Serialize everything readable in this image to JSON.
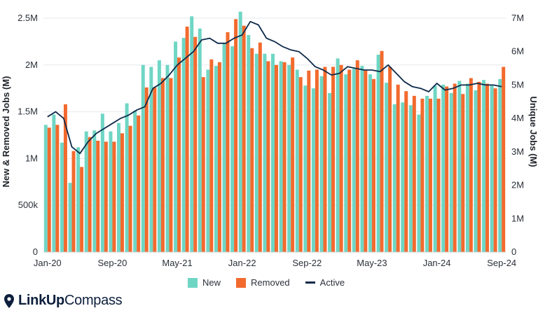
{
  "legend": {
    "new_label": "New",
    "removed_label": "Removed",
    "active_label": "Active"
  },
  "brand": {
    "name_bold": "LinkUp",
    "name_light": "Compass"
  },
  "chart_data": {
    "type": "bar",
    "title": "",
    "ylabel_left": "New & Removed Jobs (M)",
    "ylabel_right": "Unique Jobs (M)",
    "ylim_left": [
      0,
      2500000
    ],
    "ylim_right": [
      0,
      7000000
    ],
    "yticks_left": [
      "0",
      "500k",
      "1M",
      "1.5M",
      "2M",
      "2.5M"
    ],
    "yticks_right": [
      "0",
      "1M",
      "2M",
      "3M",
      "4M",
      "5M",
      "6M",
      "7M"
    ],
    "xticks": [
      "Jan-20",
      "Sep-20",
      "May-21",
      "Jan-22",
      "Sep-22",
      "May-23",
      "Jan-24",
      "Sep-24"
    ],
    "legend_position": "bottom",
    "colors": {
      "new": "#6fd6c4",
      "removed": "#f26a2e",
      "active": "#0e2a4a"
    },
    "categories": [
      "Jan-20",
      "Feb-20",
      "Mar-20",
      "Apr-20",
      "May-20",
      "Jun-20",
      "Jul-20",
      "Aug-20",
      "Sep-20",
      "Oct-20",
      "Nov-20",
      "Dec-20",
      "Jan-21",
      "Feb-21",
      "Mar-21",
      "Apr-21",
      "May-21",
      "Jun-21",
      "Jul-21",
      "Aug-21",
      "Sep-21",
      "Oct-21",
      "Nov-21",
      "Dec-21",
      "Jan-22",
      "Feb-22",
      "Mar-22",
      "Apr-22",
      "May-22",
      "Jun-22",
      "Jul-22",
      "Aug-22",
      "Sep-22",
      "Oct-22",
      "Nov-22",
      "Dec-22",
      "Jan-23",
      "Feb-23",
      "Mar-23",
      "Apr-23",
      "May-23",
      "Jun-23",
      "Jul-23",
      "Aug-23",
      "Sep-23",
      "Oct-23",
      "Nov-23",
      "Dec-23",
      "Jan-24",
      "Feb-24",
      "Mar-24",
      "Apr-24",
      "May-24",
      "Jun-24",
      "Jul-24",
      "Aug-24",
      "Sep-24"
    ],
    "series": [
      {
        "name": "New",
        "type": "bar",
        "axis": "left",
        "values": [
          1360000,
          1470000,
          1170000,
          740000,
          1120000,
          1290000,
          1300000,
          1480000,
          1290000,
          1380000,
          1590000,
          1510000,
          2000000,
          1980000,
          2050000,
          2000000,
          2250000,
          2290000,
          2520000,
          2390000,
          1950000,
          1990000,
          2230000,
          2200000,
          2570000,
          2320000,
          2120000,
          2120000,
          2120000,
          2040000,
          2000000,
          1950000,
          1780000,
          1750000,
          1880000,
          1700000,
          2070000,
          1900000,
          1960000,
          1990000,
          1900000,
          2110000,
          1810000,
          1580000,
          1600000,
          1570000,
          1470000,
          1670000,
          1780000,
          1790000,
          1700000,
          1830000,
          1800000,
          1730000,
          1840000,
          1780000,
          1850000
        ]
      },
      {
        "name": "Removed",
        "type": "bar",
        "axis": "left",
        "values": [
          1330000,
          1360000,
          1580000,
          1080000,
          910000,
          1230000,
          1190000,
          1180000,
          1180000,
          1270000,
          1350000,
          1460000,
          1760000,
          1760000,
          1860000,
          1860000,
          2080000,
          2410000,
          2300000,
          1870000,
          2060000,
          2030000,
          2350000,
          2490000,
          2420000,
          2180000,
          2240000,
          2040000,
          2000000,
          2030000,
          2080000,
          1870000,
          1940000,
          1950000,
          1980000,
          1980000,
          2000000,
          1950000,
          2050000,
          1940000,
          1850000,
          2150000,
          1980000,
          1790000,
          1720000,
          1670000,
          1640000,
          1640000,
          1640000,
          1770000,
          1800000,
          1690000,
          1860000,
          1820000,
          1800000,
          1750000,
          1980000
        ]
      },
      {
        "name": "Active",
        "type": "line",
        "axis": "right",
        "values": [
          4050000,
          4200000,
          4000000,
          3150000,
          2950000,
          3300000,
          3550000,
          3700000,
          3850000,
          4000000,
          4100000,
          4250000,
          4350000,
          4900000,
          5050000,
          5300000,
          5600000,
          5800000,
          6000000,
          6350000,
          6400000,
          6250000,
          6250000,
          6400000,
          6500000,
          6900000,
          6800000,
          6400000,
          6300000,
          6150000,
          6050000,
          6000000,
          5800000,
          5550000,
          5450000,
          5300000,
          5350000,
          5550000,
          5500000,
          5450000,
          5450000,
          5400000,
          5600000,
          5350000,
          5100000,
          4950000,
          4900000,
          4800000,
          5050000,
          4850000,
          4900000,
          5000000,
          5000000,
          5050000,
          5000000,
          5000000,
          4950000
        ]
      }
    ]
  }
}
